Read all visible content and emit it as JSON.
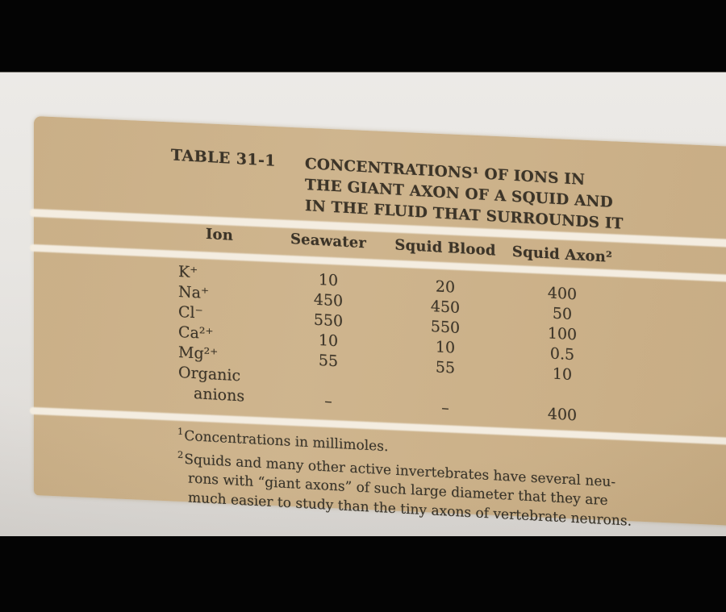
{
  "table": {
    "label": "TABLE 31-1",
    "title_lines": [
      "CONCENTRATIONS¹ OF IONS IN",
      "THE GIANT AXON OF A SQUID AND",
      "IN THE FLUID THAT SURROUNDS IT"
    ],
    "columns": [
      "Ion",
      "Seawater",
      "Squid Blood",
      "Squid Axon²"
    ],
    "rows": [
      {
        "ion": [
          "K⁺"
        ],
        "values": [
          "10",
          "20",
          "400"
        ]
      },
      {
        "ion": [
          "Na⁺"
        ],
        "values": [
          "450",
          "450",
          "50"
        ]
      },
      {
        "ion": [
          "Cl⁻"
        ],
        "values": [
          "550",
          "550",
          "100"
        ]
      },
      {
        "ion": [
          "Ca²⁺"
        ],
        "values": [
          "10",
          "10",
          "0.5"
        ]
      },
      {
        "ion": [
          "Mg²⁺"
        ],
        "values": [
          "55",
          "55",
          "10"
        ]
      },
      {
        "ion": [
          "Organic",
          "anions"
        ],
        "values": [
          "–",
          "–",
          "400"
        ]
      }
    ],
    "footnotes": [
      {
        "marker": "1",
        "lines": [
          "Concentrations in millimoles."
        ]
      },
      {
        "marker": "2",
        "lines": [
          "Squids and many other active invertebrates have several neu-",
          "rons with “giant axons” of such large diameter that they are",
          "much easier to study than the tiny axons of vertebrate neurons."
        ]
      }
    ]
  },
  "colors": {
    "letterbox": "#040404",
    "page_gray": "#e7e5e1",
    "panel_tan": "#c9ae84",
    "rule_white": "#f3ecdf",
    "ink": "#31291c"
  }
}
